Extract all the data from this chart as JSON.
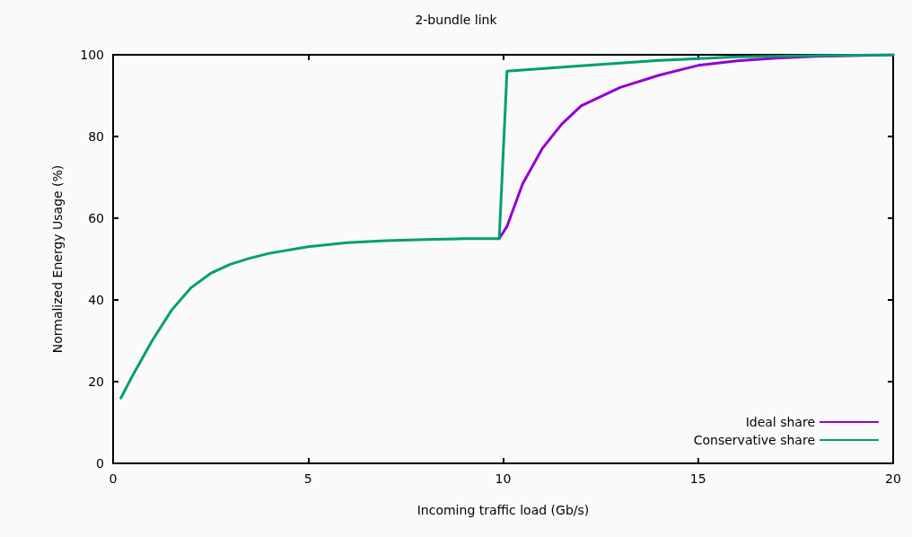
{
  "chart_data": {
    "type": "line",
    "title": "2-bundle link",
    "xlabel": "Incoming traffic load (Gb/s)",
    "ylabel": "Normalized Energy Usage (%)",
    "xlim": [
      0,
      20
    ],
    "xticks": [
      0,
      5,
      10,
      15,
      20
    ],
    "ylim": [
      0,
      100
    ],
    "yticks": [
      0,
      20,
      40,
      60,
      80,
      100
    ],
    "grid": false,
    "legend": "bottom right",
    "marker": "none",
    "line_style": "solid",
    "series": [
      {
        "name": "Ideal share",
        "color": "#9400d3",
        "x": [
          9.9,
          10.1,
          10.5,
          11,
          11.5,
          12,
          13,
          14,
          15,
          16,
          17,
          18,
          20
        ],
        "values": [
          55,
          58,
          68.4,
          77,
          83,
          87.5,
          92,
          95,
          97.4,
          98.5,
          99.2,
          99.6,
          100
        ]
      },
      {
        "name": "Conservative share",
        "color": "#009e73",
        "x": [
          0.2,
          0.5,
          1,
          1.5,
          2,
          2.5,
          3,
          3.5,
          4,
          5,
          6,
          7,
          8,
          9,
          9.9,
          10.1,
          12,
          14,
          16,
          18,
          20
        ],
        "values": [
          16,
          21.5,
          30,
          37.5,
          43,
          46.5,
          48.7,
          50.2,
          51.4,
          53,
          54,
          54.5,
          54.8,
          55,
          55,
          96,
          97.3,
          98.6,
          99.5,
          99.8,
          100
        ]
      }
    ]
  }
}
